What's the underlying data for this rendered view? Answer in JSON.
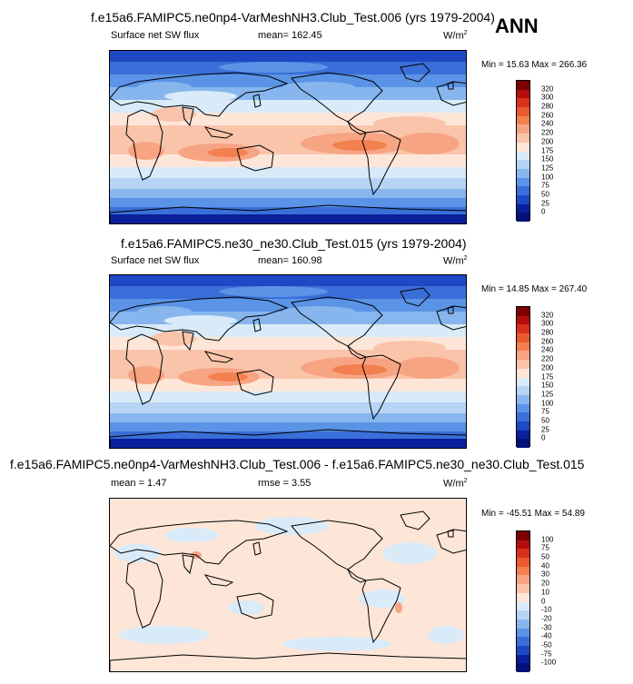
{
  "season_label": "ANN",
  "panels": [
    {
      "title": "f.e15a6.FAMIPC5.ne0np4-VarMeshNH3.Club_Test.006 (yrs 1979-2004)",
      "left_label": "Surface net SW flux",
      "center_label": "mean=  162.45",
      "units": "W/m",
      "units_exp": "2",
      "minmax": "Min =  15.63 Max = 266.36",
      "colorbar_levels": [
        "320",
        "300",
        "280",
        "260",
        "240",
        "220",
        "200",
        "175",
        "150",
        "125",
        "100",
        "75",
        "50",
        "25",
        "0"
      ],
      "colors": [
        "#7e0000",
        "#b40d0d",
        "#d8301a",
        "#ea5a30",
        "#f2814f",
        "#f7a483",
        "#fac4ab",
        "#fde6d8",
        "#d9ebf8",
        "#b7d4f4",
        "#87b6ee",
        "#5b93e6",
        "#3a6fd9",
        "#1e48c4",
        "#0a1f9c",
        "#05107a"
      ]
    },
    {
      "title": "f.e15a6.FAMIPC5.ne30_ne30.Club_Test.015 (yrs 1979-2004)",
      "left_label": "Surface net SW flux",
      "center_label": "mean=  160.98",
      "units": "W/m",
      "units_exp": "2",
      "minmax": "Min =  14.85 Max = 267.40",
      "colorbar_levels": [
        "320",
        "300",
        "280",
        "260",
        "240",
        "220",
        "200",
        "175",
        "150",
        "125",
        "100",
        "75",
        "50",
        "25",
        "0"
      ],
      "colors": [
        "#7e0000",
        "#b40d0d",
        "#d8301a",
        "#ea5a30",
        "#f2814f",
        "#f7a483",
        "#fac4ab",
        "#fde6d8",
        "#d9ebf8",
        "#b7d4f4",
        "#87b6ee",
        "#5b93e6",
        "#3a6fd9",
        "#1e48c4",
        "#0a1f9c",
        "#05107a"
      ]
    },
    {
      "title": "f.e15a6.FAMIPC5.ne0np4-VarMeshNH3.Club_Test.006 - f.e15a6.FAMIPC5.ne30_ne30.Club_Test.015",
      "left_label": "mean =   1.47",
      "center_label": "rmse =   3.55",
      "units": "W/m",
      "units_exp": "2",
      "minmax": "Min = -45.51 Max =  54.89",
      "colorbar_levels": [
        "100",
        "75",
        "50",
        "40",
        "30",
        "20",
        "10",
        "0",
        "-10",
        "-20",
        "-30",
        "-40",
        "-50",
        "-75",
        "-100"
      ],
      "colors": [
        "#7e0000",
        "#b40d0d",
        "#d8301a",
        "#ea5a30",
        "#f2814f",
        "#f7a483",
        "#fac4ab",
        "#fde6d8",
        "#d9ebf8",
        "#b7d4f4",
        "#87b6ee",
        "#5b93e6",
        "#3a6fd9",
        "#1e48c4",
        "#0a1f9c",
        "#05107a"
      ]
    }
  ]
}
